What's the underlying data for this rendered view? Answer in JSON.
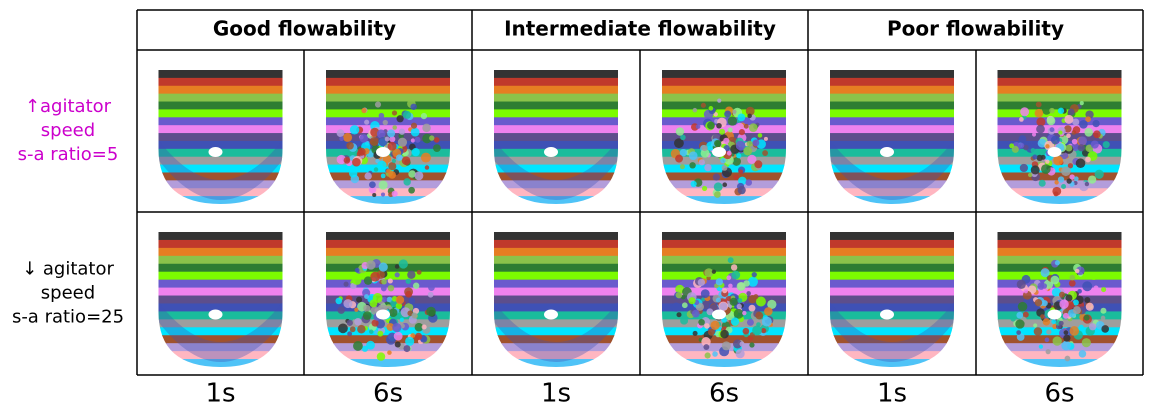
{
  "header": {
    "columns": [
      "Good flowability",
      "Intermediate flowability",
      "Poor flowability"
    ]
  },
  "rows": [
    {
      "lines": [
        "↑agitator",
        "speed",
        "s-a ratio=5"
      ],
      "color": "#cc00cc"
    },
    {
      "lines": [
        "↓ agitator",
        "speed",
        "s-a ratio=25"
      ],
      "color": "#000000"
    }
  ],
  "time_labels": [
    "1s",
    "6s",
    "1s",
    "6s",
    "1s",
    "6s"
  ]
}
